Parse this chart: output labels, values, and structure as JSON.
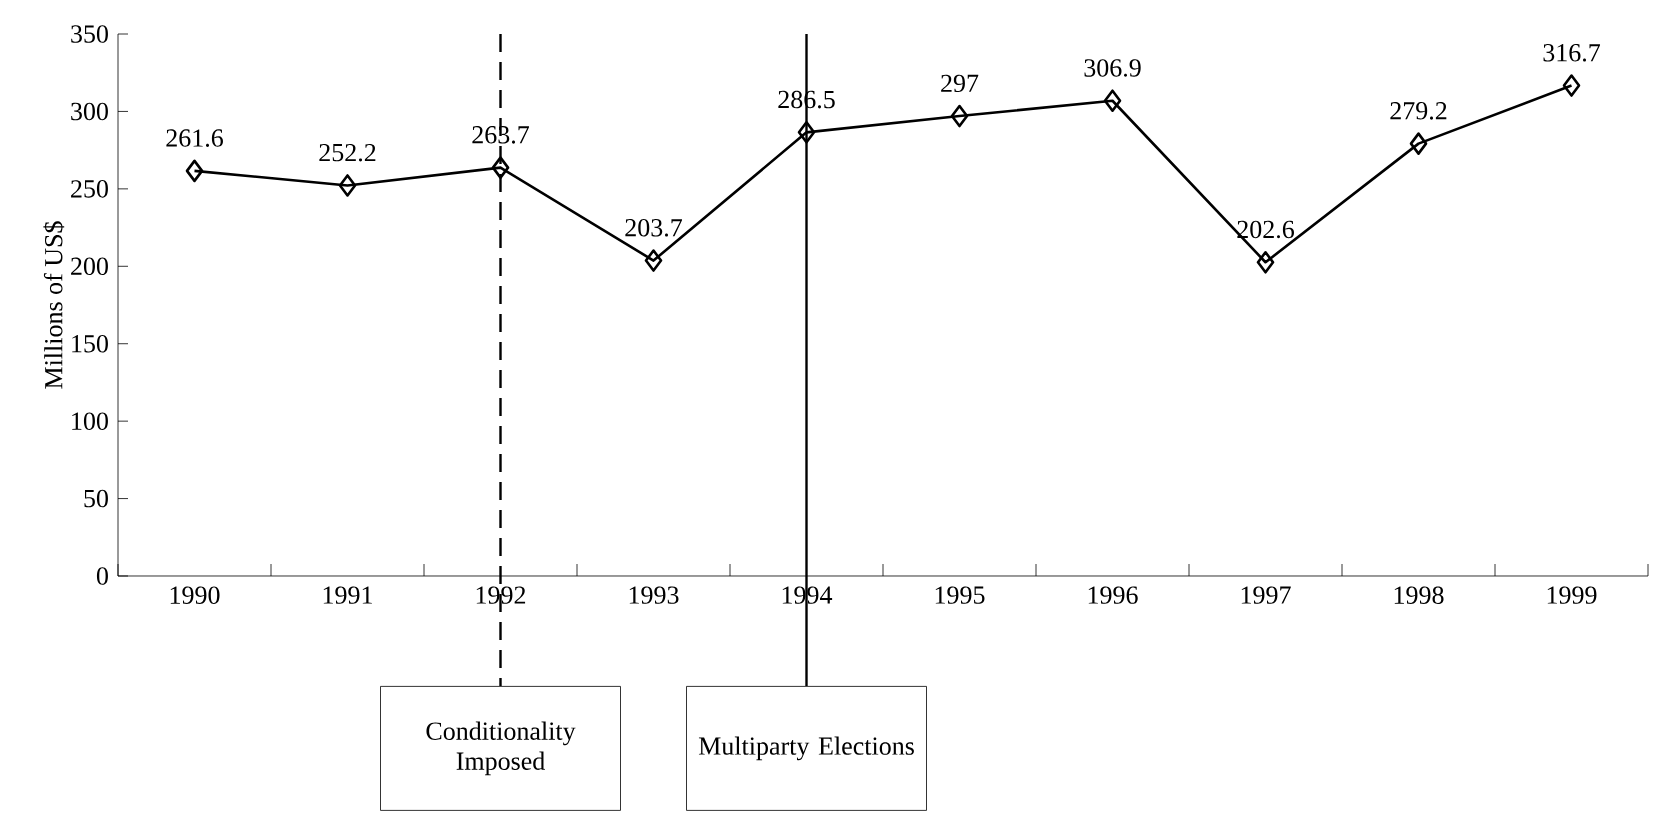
{
  "chart_data": {
    "type": "line",
    "ylabel": "Millions of US$",
    "categories": [
      "1990",
      "1991",
      "1992",
      "1993",
      "1994",
      "1995",
      "1996",
      "1997",
      "1998",
      "1999"
    ],
    "series": [
      {
        "color": "#000000",
        "values": [
          261.6,
          252.2,
          263.7,
          203.7,
          286.5,
          297,
          306.9,
          202.6,
          279.2,
          316.7
        ]
      }
    ],
    "ylim": [
      0,
      350
    ],
    "yticks": [
      0,
      50,
      100,
      150,
      200,
      250,
      300,
      350
    ],
    "ref_lines": [
      {
        "axis": "x",
        "value": "1992",
        "label": "Conditionality Imposed",
        "line_style": "dashed",
        "color": "#000000"
      },
      {
        "axis": "x",
        "value": "1994",
        "label": "Multiparty Elections",
        "line_style": "solid",
        "color": "#000000"
      }
    ],
    "data_labels": true,
    "marker": "diamond",
    "line_style": "solid",
    "grid": false,
    "legend": false
  }
}
